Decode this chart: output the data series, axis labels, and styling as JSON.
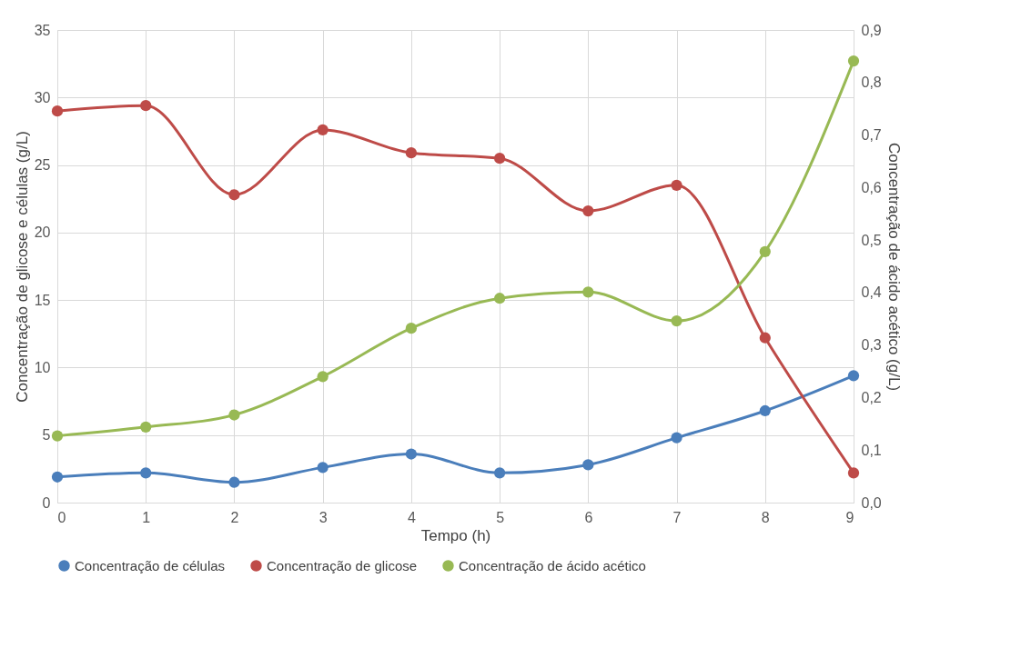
{
  "chart_data": {
    "type": "line",
    "xlabel": "Tempo (h)",
    "ylabel": "Concentração de glicose  e células (g/L)",
    "y2label": "Concentração de ácido acético (g/L)",
    "x": [
      0,
      1,
      2,
      3,
      4,
      5,
      6,
      7,
      8,
      9
    ],
    "xlim": [
      0,
      9
    ],
    "xticks": [
      0,
      1,
      2,
      3,
      4,
      5,
      6,
      7,
      8,
      9
    ],
    "ylim": [
      0,
      35
    ],
    "yticks": [
      0,
      5,
      10,
      15,
      20,
      25,
      30,
      35
    ],
    "y2lim": [
      0,
      0.9
    ],
    "y2ticks": [
      {
        "value": 0,
        "label": "0,0"
      },
      {
        "value": 0.1,
        "label": "0,1"
      },
      {
        "value": 0.2,
        "label": "0,2"
      },
      {
        "value": 0.3,
        "label": "0,3"
      },
      {
        "value": 0.4,
        "label": "0,4"
      },
      {
        "value": 0.5,
        "label": "0,5"
      },
      {
        "value": 0.6,
        "label": "0,6"
      },
      {
        "value": 0.7,
        "label": "0,7"
      },
      {
        "value": 0.8,
        "label": "0,8"
      },
      {
        "value": 0.9,
        "label": "0,9"
      }
    ],
    "series": [
      {
        "name": "Concentração de células",
        "color": "#4a7ebb",
        "values": [
          1.9,
          2.2,
          1.5,
          2.6,
          3.6,
          2.2,
          2.8,
          4.8,
          6.8,
          9.4
        ]
      },
      {
        "name": "Concentração de glicose",
        "color": "#be4b48",
        "values": [
          29.0,
          29.4,
          22.8,
          27.6,
          25.9,
          25.5,
          21.6,
          23.5,
          12.2,
          2.2
        ]
      },
      {
        "name": "Concentração de ácido acético",
        "color": "#98b954",
        "axis": "y2",
        "values": [
          0.127,
          0.144,
          0.167,
          0.24,
          0.332,
          0.389,
          0.401,
          0.346,
          0.478,
          0.841
        ]
      }
    ],
    "marker": "circle",
    "line_style": "solid",
    "grid": true,
    "legend": "bottom"
  }
}
